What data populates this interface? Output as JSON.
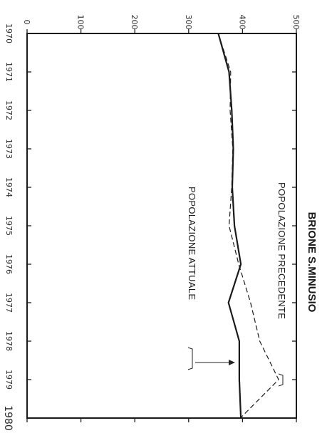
{
  "chart_data": {
    "type": "line",
    "title": "BRIONE S.MINUSIO",
    "orientation": "rotated 90° clockwise (years along the vertical, values along the horizontal)",
    "x": [
      1970,
      1971,
      1972,
      1973,
      1974,
      1975,
      1976,
      1977,
      1978,
      1979,
      1980
    ],
    "xlabels": [
      "1970",
      "1971",
      "1972",
      "1973",
      "1974",
      "1975",
      "1976",
      "1977",
      "1978",
      "1979",
      "1980"
    ],
    "ylim": [
      0,
      500
    ],
    "yticks": [
      0,
      100,
      200,
      300,
      400,
      500
    ],
    "ytick_labels": [
      "0",
      "100",
      "200",
      "300",
      "400",
      "500"
    ],
    "grid": false,
    "series": [
      {
        "name": "POPOLAZIONE PRECEDENTE",
        "style": "dashed",
        "values": [
          355,
          378,
          377,
          382,
          380,
          375,
          393,
          415,
          432,
          467,
          396
        ]
      },
      {
        "name": "POPOLAZIONE ATTUALE",
        "style": "solid",
        "values": [
          355,
          375,
          380,
          383,
          381,
          385,
          397,
          374,
          394,
          394,
          397
        ]
      }
    ]
  }
}
